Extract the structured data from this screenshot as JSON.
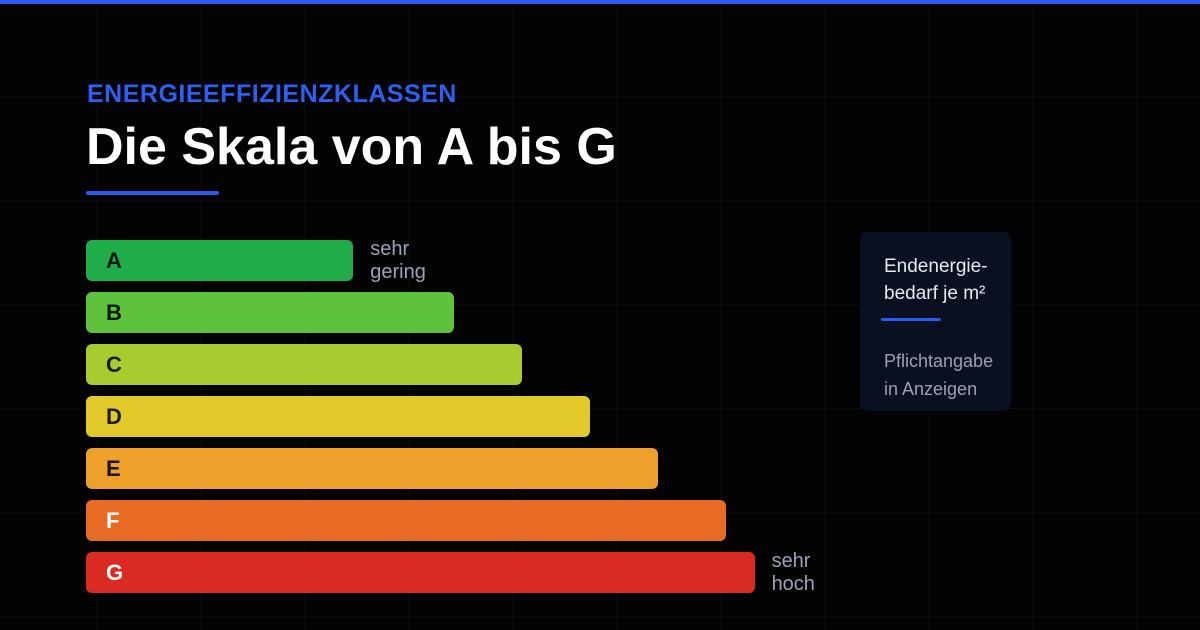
{
  "header": {
    "eyebrow": "ENERGIEEFFIZIENZKLASSEN",
    "title": "Die Skala von A bis G"
  },
  "classes": [
    {
      "label": "A",
      "color": "#22ad4b",
      "text_color": "#0d1a10",
      "note": "sehr gering"
    },
    {
      "label": "B",
      "color": "#5fc23c",
      "text_color": "#0d1a10",
      "note": ""
    },
    {
      "label": "C",
      "color": "#a8cc2f",
      "text_color": "#1a1a0d",
      "note": ""
    },
    {
      "label": "D",
      "color": "#e2c92a",
      "text_color": "#1a1a0d",
      "note": ""
    },
    {
      "label": "E",
      "color": "#eda02a",
      "text_color": "#1a1208",
      "note": ""
    },
    {
      "label": "F",
      "color": "#e76b24",
      "text_color": "#ffffff",
      "note": ""
    },
    {
      "label": "G",
      "color": "#d92b22",
      "text_color": "#ffffff",
      "note": "sehr hoch"
    }
  ],
  "sidecard": {
    "title": "Endenergie-\nbedarf je m²",
    "text": "Pflichtangabe\nin Anzeigen"
  },
  "colors": {
    "accent": "#2a5bf0",
    "background": "#030303"
  }
}
